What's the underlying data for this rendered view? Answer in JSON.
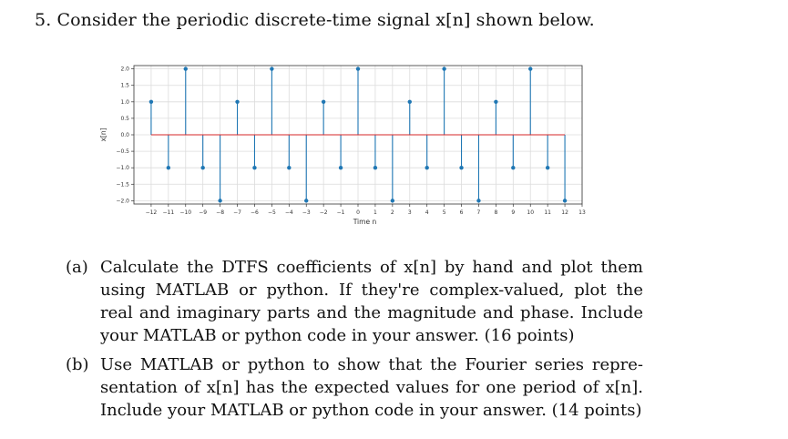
{
  "problem": {
    "number": "5.",
    "title": "Consider the periodic discrete-time signal x[n] shown below."
  },
  "chart_data": {
    "type": "stem",
    "x": [
      -12,
      -11,
      -10,
      -9,
      -8,
      -7,
      -6,
      -5,
      -4,
      -3,
      -2,
      -1,
      0,
      1,
      2,
      3,
      4,
      5,
      6,
      7,
      8,
      9,
      10,
      11,
      12
    ],
    "values": [
      1,
      -1,
      2,
      -1,
      -2,
      1,
      -1,
      2,
      -1,
      -2,
      1,
      -1,
      2,
      -1,
      -2,
      1,
      -1,
      2,
      -1,
      -2,
      1,
      -1,
      2,
      -1,
      -2
    ],
    "xlabel": "Time n",
    "ylabel": "x[n]",
    "xlim": [
      -13,
      13
    ],
    "ylim": [
      -2.1,
      2.1
    ],
    "xticks": [
      -12,
      -11,
      -10,
      -9,
      -8,
      -7,
      -6,
      -5,
      -4,
      -3,
      -2,
      -1,
      0,
      1,
      2,
      3,
      4,
      5,
      6,
      7,
      8,
      9,
      10,
      11,
      12,
      13
    ],
    "yticks": [
      "2.0",
      "1.5",
      "1.0",
      "0.5",
      "0.0",
      "-0.5",
      "-1.0",
      "-1.5",
      "-2.0"
    ],
    "grid": true,
    "stem_color": "#1f77b4",
    "baseline_color": "#d62728"
  },
  "parts": [
    {
      "label": "(a)",
      "lines": [
        "Calculate the DTFS coefficients of x[n] by hand and plot them",
        "using MATLAB or python. If they're complex-valued, plot the",
        "real and imaginary parts and the magnitude and phase. Include",
        "your MATLAB or python code in your answer. (16 points)"
      ]
    },
    {
      "label": "(b)",
      "lines": [
        "Use MATLAB or python to show that the Fourier series repre-",
        "sentation of x[n] has the expected values for one period of x[n].",
        "Include your MATLAB or python code in your answer. (14 points)"
      ]
    }
  ]
}
